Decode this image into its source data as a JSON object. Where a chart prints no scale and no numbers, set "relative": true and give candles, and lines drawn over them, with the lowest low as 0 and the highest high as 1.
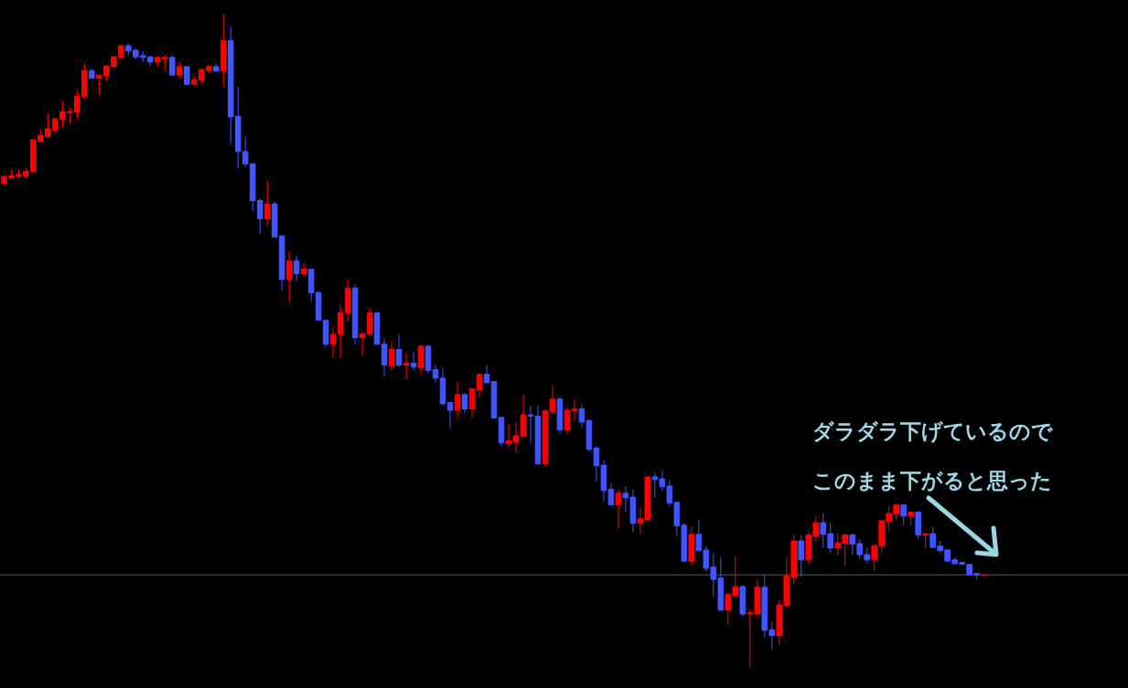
{
  "chart_data": {
    "type": "candlestick",
    "relative": true,
    "categories": [
      null,
      null,
      null,
      null,
      null,
      null,
      null,
      null,
      null,
      null,
      null,
      null,
      null,
      null,
      null,
      null,
      null,
      null,
      null,
      null,
      null,
      null,
      null,
      null,
      null,
      null,
      null,
      null,
      null,
      null,
      null,
      null,
      null,
      null,
      null,
      null,
      null,
      null,
      null,
      null,
      null,
      null,
      null,
      null,
      null,
      null,
      null,
      null,
      null,
      null,
      null,
      null,
      null,
      null,
      null,
      null,
      null,
      null,
      null,
      null,
      null,
      null,
      null,
      null,
      null,
      null,
      null,
      null,
      null,
      null,
      null,
      null,
      null,
      null,
      null,
      null,
      null,
      null,
      null,
      null,
      null,
      null,
      null,
      null,
      null,
      null,
      null,
      null,
      null,
      null,
      null,
      null,
      null,
      null,
      null,
      null,
      null,
      null,
      null,
      null,
      null,
      null,
      null,
      null,
      null,
      null,
      null,
      null,
      null,
      null,
      null,
      null,
      null,
      null,
      null,
      null,
      null,
      null,
      null,
      null,
      null,
      null,
      null,
      null,
      null,
      null,
      null,
      null,
      null,
      null,
      null,
      null,
      null,
      null,
      null
    ],
    "ohlc": [
      [
        0.74,
        0.752,
        0.738,
        0.751
      ],
      [
        0.749,
        0.762,
        0.748,
        0.752
      ],
      [
        0.751,
        0.761,
        0.748,
        0.754
      ],
      [
        0.752,
        0.763,
        0.747,
        0.759
      ],
      [
        0.758,
        0.807,
        0.758,
        0.807
      ],
      [
        0.805,
        0.824,
        0.804,
        0.814
      ],
      [
        0.812,
        0.847,
        0.811,
        0.824
      ],
      [
        0.822,
        0.84,
        0.817,
        0.839
      ],
      [
        0.838,
        0.867,
        0.825,
        0.85
      ],
      [
        0.849,
        0.857,
        0.832,
        0.85
      ],
      [
        0.849,
        0.882,
        0.838,
        0.874
      ],
      [
        0.873,
        0.923,
        0.871,
        0.913
      ],
      [
        0.913,
        0.916,
        0.901,
        0.901
      ],
      [
        0.901,
        0.906,
        0.875,
        0.906
      ],
      [
        0.905,
        0.92,
        0.898,
        0.92
      ],
      [
        0.919,
        0.934,
        0.919,
        0.934
      ],
      [
        0.933,
        0.951,
        0.929,
        0.951
      ],
      [
        0.951,
        0.955,
        0.936,
        0.943
      ],
      [
        0.944,
        0.947,
        0.93,
        0.934
      ],
      [
        0.936,
        0.943,
        0.926,
        0.933
      ],
      [
        0.934,
        0.936,
        0.92,
        0.926
      ],
      [
        0.926,
        0.933,
        0.919,
        0.933
      ],
      [
        0.931,
        0.937,
        0.913,
        0.933
      ],
      [
        0.933,
        0.937,
        0.906,
        0.906
      ],
      [
        0.906,
        0.926,
        0.901,
        0.919
      ],
      [
        0.919,
        0.919,
        0.892,
        0.892
      ],
      [
        0.892,
        0.905,
        0.891,
        0.899
      ],
      [
        0.898,
        0.915,
        0.892,
        0.915
      ],
      [
        0.913,
        0.922,
        0.909,
        0.919
      ],
      [
        0.919,
        0.924,
        0.912,
        0.912
      ],
      [
        0.912,
        1,
        0.889,
        0.959
      ],
      [
        0.959,
        0.98,
        0.801,
        0.842
      ],
      [
        0.843,
        0.888,
        0.763,
        0.789
      ],
      [
        0.789,
        0.812,
        0.765,
        0.77
      ],
      [
        0.77,
        0.772,
        0.699,
        0.714
      ],
      [
        0.714,
        0.717,
        0.663,
        0.686
      ],
      [
        0.686,
        0.745,
        0.675,
        0.709
      ],
      [
        0.709,
        0.712,
        0.658,
        0.658
      ],
      [
        0.66,
        0.66,
        0.576,
        0.593
      ],
      [
        0.593,
        0.636,
        0.559,
        0.622
      ],
      [
        0.622,
        0.63,
        0.59,
        0.602
      ],
      [
        0.602,
        0.619,
        0.597,
        0.609
      ],
      [
        0.609,
        0.609,
        0.559,
        0.573
      ],
      [
        0.573,
        0.576,
        0.53,
        0.531
      ],
      [
        0.531,
        0.532,
        0.49,
        0.494
      ],
      [
        0.494,
        0.52,
        0.473,
        0.509
      ],
      [
        0.509,
        0.555,
        0.473,
        0.542
      ],
      [
        0.542,
        0.593,
        0.53,
        0.58
      ],
      [
        0.58,
        0.586,
        0.494,
        0.504
      ],
      [
        0.504,
        0.514,
        0.477,
        0.51
      ],
      [
        0.51,
        0.549,
        0.507,
        0.542
      ],
      [
        0.542,
        0.544,
        0.493,
        0.494
      ],
      [
        0.494,
        0.503,
        0.445,
        0.462
      ],
      [
        0.461,
        0.498,
        0.454,
        0.486
      ],
      [
        0.486,
        0.51,
        0.459,
        0.462
      ],
      [
        0.462,
        0.48,
        0.441,
        0.465
      ],
      [
        0.465,
        0.482,
        0.454,
        0.459
      ],
      [
        0.458,
        0.491,
        0.447,
        0.491
      ],
      [
        0.491,
        0.493,
        0.449,
        0.454
      ],
      [
        0.455,
        0.463,
        0.435,
        0.442
      ],
      [
        0.442,
        0.458,
        0.4,
        0.403
      ],
      [
        0.405,
        0.406,
        0.365,
        0.393
      ],
      [
        0.393,
        0.435,
        0.382,
        0.417
      ],
      [
        0.417,
        0.42,
        0.388,
        0.395
      ],
      [
        0.395,
        0.426,
        0.381,
        0.426
      ],
      [
        0.424,
        0.448,
        0.412,
        0.448
      ],
      [
        0.448,
        0.463,
        0.435,
        0.435
      ],
      [
        0.437,
        0.437,
        0.381,
        0.381
      ],
      [
        0.382,
        0.382,
        0.339,
        0.343
      ],
      [
        0.342,
        0.371,
        0.336,
        0.346
      ],
      [
        0.344,
        0.374,
        0.329,
        0.354
      ],
      [
        0.353,
        0.416,
        0.351,
        0.386
      ],
      [
        0.386,
        0.4,
        0.343,
        0.384
      ],
      [
        0.384,
        0.4,
        0.309,
        0.311
      ],
      [
        0.311,
        0.395,
        0.307,
        0.392
      ],
      [
        0.391,
        0.431,
        0.386,
        0.41
      ],
      [
        0.41,
        0.413,
        0.357,
        0.363
      ],
      [
        0.363,
        0.398,
        0.356,
        0.393
      ],
      [
        0.392,
        0.41,
        0.377,
        0.395
      ],
      [
        0.395,
        0.402,
        0.367,
        0.375
      ],
      [
        0.377,
        0.379,
        0.33,
        0.333
      ],
      [
        0.335,
        0.339,
        0.284,
        0.308
      ],
      [
        0.309,
        0.316,
        0.253,
        0.27
      ],
      [
        0.272,
        0.281,
        0.248,
        0.248
      ],
      [
        0.248,
        0.272,
        0.211,
        0.266
      ],
      [
        0.266,
        0.277,
        0.238,
        0.259
      ],
      [
        0.26,
        0.272,
        0.207,
        0.22
      ],
      [
        0.22,
        0.244,
        0.203,
        0.227
      ],
      [
        0.225,
        0.291,
        0.225,
        0.291
      ],
      [
        0.291,
        0.297,
        0.259,
        0.287
      ],
      [
        0.288,
        0.301,
        0.269,
        0.276
      ],
      [
        0.277,
        0.287,
        0.245,
        0.251
      ],
      [
        0.252,
        0.252,
        0.2,
        0.216
      ],
      [
        0.217,
        0.221,
        0.16,
        0.162
      ],
      [
        0.162,
        0.214,
        0.155,
        0.203
      ],
      [
        0.203,
        0.224,
        0.176,
        0.178
      ],
      [
        0.179,
        0.185,
        0.146,
        0.151
      ],
      [
        0.153,
        0.174,
        0.108,
        0.134
      ],
      [
        0.136,
        0.167,
        0.085,
        0.087
      ],
      [
        0.087,
        0.111,
        0.064,
        0.111
      ],
      [
        0.109,
        0.169,
        0.106,
        0.123
      ],
      [
        0.123,
        0.125,
        0.077,
        0.081
      ],
      [
        0.081,
        0.088,
        0,
        0.083
      ],
      [
        0.081,
        0.134,
        0.081,
        0.122
      ],
      [
        0.122,
        0.141,
        0.045,
        0.056
      ],
      [
        0.057,
        0.069,
        0.027,
        0.048
      ],
      [
        0.048,
        0.102,
        0.034,
        0.095
      ],
      [
        0.094,
        0.167,
        0.092,
        0.139
      ],
      [
        0.137,
        0.202,
        0.127,
        0.193
      ],
      [
        0.193,
        0.202,
        0.139,
        0.164
      ],
      [
        0.164,
        0.209,
        0.157,
        0.202
      ],
      [
        0.2,
        0.23,
        0.192,
        0.221
      ],
      [
        0.221,
        0.235,
        0.183,
        0.203
      ],
      [
        0.204,
        0.221,
        0.175,
        0.182
      ],
      [
        0.182,
        0.204,
        0.172,
        0.19
      ],
      [
        0.189,
        0.204,
        0.155,
        0.202
      ],
      [
        0.202,
        0.204,
        0.172,
        0.188
      ],
      [
        0.189,
        0.196,
        0.165,
        0.172
      ],
      [
        0.172,
        0.183,
        0.158,
        0.164
      ],
      [
        0.164,
        0.186,
        0.147,
        0.186
      ],
      [
        0.185,
        0.224,
        0.175,
        0.224
      ],
      [
        0.223,
        0.245,
        0.209,
        0.235
      ],
      [
        0.234,
        0.251,
        0.225,
        0.248
      ],
      [
        0.248,
        0.248,
        0.218,
        0.231
      ],
      [
        0.231,
        0.238,
        0.217,
        0.237
      ],
      [
        0.237,
        0.239,
        0.196,
        0.202
      ],
      [
        0.202,
        0.204,
        0.181,
        0.204
      ],
      [
        0.204,
        0.214,
        0.183,
        0.183
      ],
      [
        0.185,
        0.193,
        0.174,
        0.178
      ],
      [
        0.179,
        0.181,
        0.162,
        0.162
      ],
      [
        0.164,
        0.167,
        0.157,
        0.158
      ],
      [
        0.16,
        0.16,
        0.157,
        0.157
      ],
      [
        0.157,
        0.157,
        0.141,
        0.141
      ],
      [
        0.143,
        0.143,
        0.134,
        0.141
      ],
      [
        0.14,
        0.141,
        0.14,
        0.141
      ]
    ],
    "colors": [
      "#ff0000",
      "#ff0000",
      "#ff0000",
      "#ff0000",
      "#ff0000",
      "#ff0000",
      "#ff0000",
      "#ff0000",
      "#ff0000",
      "#ff0000",
      "#ff0000",
      "#ff0000",
      "#3f55ff",
      "#ff0000",
      "#ff0000",
      "#ff0000",
      "#ff0000",
      "#3f55ff",
      "#3f55ff",
      "#3f55ff",
      "#3f55ff",
      "#ff0000",
      "#ff0000",
      "#3f55ff",
      "#ff0000",
      "#3f55ff",
      "#ff0000",
      "#ff0000",
      "#ff0000",
      "#3f55ff",
      "#ff0000",
      "#3f55ff",
      "#3f55ff",
      "#3f55ff",
      "#3f55ff",
      "#3f55ff",
      "#ff0000",
      "#3f55ff",
      "#3f55ff",
      "#ff0000",
      "#3f55ff",
      "#ff0000",
      "#3f55ff",
      "#3f55ff",
      "#3f55ff",
      "#ff0000",
      "#ff0000",
      "#ff0000",
      "#3f55ff",
      "#ff0000",
      "#ff0000",
      "#3f55ff",
      "#3f55ff",
      "#ff0000",
      "#3f55ff",
      "#ff0000",
      "#3f55ff",
      "#ff0000",
      "#3f55ff",
      "#3f55ff",
      "#3f55ff",
      "#3f55ff",
      "#ff0000",
      "#3f55ff",
      "#ff0000",
      "#ff0000",
      "#3f55ff",
      "#3f55ff",
      "#3f55ff",
      "#ff0000",
      "#ff0000",
      "#ff0000",
      "#3f55ff",
      "#3f55ff",
      "#ff0000",
      "#ff0000",
      "#3f55ff",
      "#ff0000",
      "#ff0000",
      "#3f55ff",
      "#3f55ff",
      "#3f55ff",
      "#3f55ff",
      "#3f55ff",
      "#ff0000",
      "#3f55ff",
      "#3f55ff",
      "#ff0000",
      "#ff0000",
      "#3f55ff",
      "#3f55ff",
      "#3f55ff",
      "#3f55ff",
      "#3f55ff",
      "#ff0000",
      "#3f55ff",
      "#3f55ff",
      "#3f55ff",
      "#3f55ff",
      "#ff0000",
      "#ff0000",
      "#3f55ff",
      "#ff0000",
      "#ff0000",
      "#3f55ff",
      "#3f55ff",
      "#ff0000",
      "#ff0000",
      "#ff0000",
      "#3f55ff",
      "#ff0000",
      "#ff0000",
      "#3f55ff",
      "#3f55ff",
      "#ff0000",
      "#ff0000",
      "#3f55ff",
      "#3f55ff",
      "#3f55ff",
      "#ff0000",
      "#ff0000",
      "#ff0000",
      "#ff0000",
      "#3f55ff",
      "#ff0000",
      "#3f55ff",
      "#ff0000",
      "#3f55ff",
      "#3f55ff",
      "#3f55ff",
      "#3f55ff",
      "#3f55ff",
      "#3f55ff",
      "#3f55ff",
      "#ff0000"
    ],
    "ref_lines": [
      {
        "axis": "y",
        "value": 0.141,
        "color": "#55558a"
      }
    ],
    "annotations": [
      "ダラダラ下げているので",
      "このまま下がると思った"
    ]
  }
}
